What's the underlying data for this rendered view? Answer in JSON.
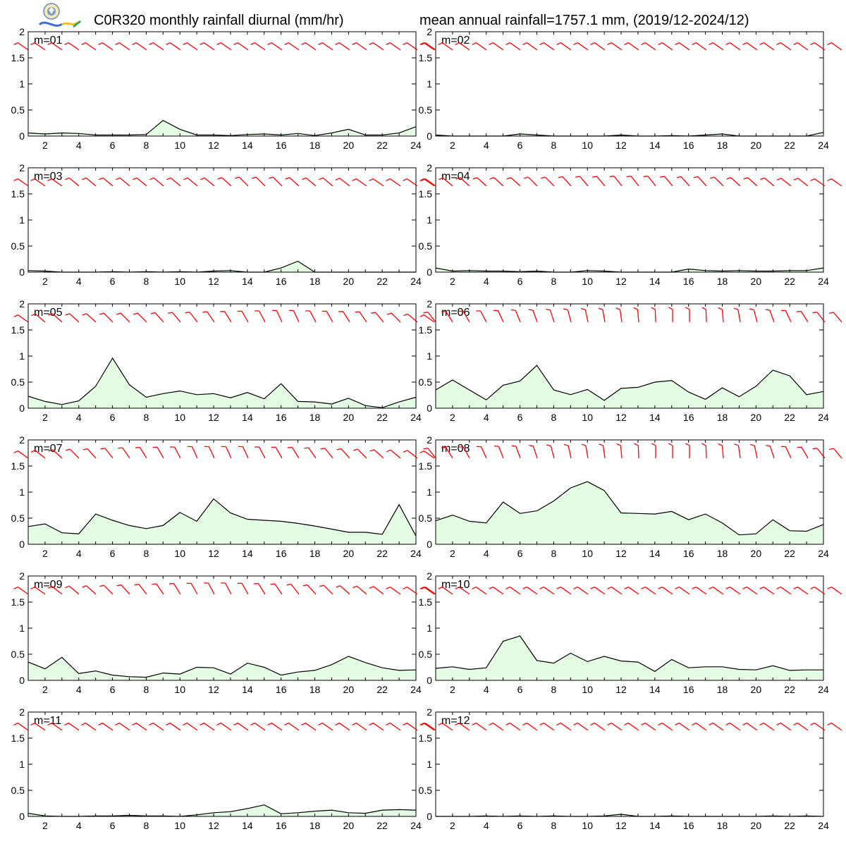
{
  "header": {
    "title_left": "C0R320 monthly rainfall diurnal (mm/hr)",
    "title_right": "mean annual rainfall=1757.1 mm, (2019/12-2024/12)"
  },
  "colors": {
    "fill": "#e4fbe4",
    "line": "#000000",
    "barb": "#ff0000",
    "axes": "#000000"
  },
  "chart_data": [
    {
      "type": "area",
      "title": "m=01",
      "x": [
        1,
        2,
        3,
        4,
        5,
        6,
        7,
        8,
        9,
        10,
        11,
        12,
        13,
        14,
        15,
        16,
        17,
        18,
        19,
        20,
        21,
        22,
        23,
        24
      ],
      "values": [
        0.06,
        0.04,
        0.06,
        0.05,
        0.02,
        0.02,
        0.02,
        0.03,
        0.3,
        0.13,
        0.02,
        0.02,
        0.01,
        0.03,
        0.04,
        0.02,
        0.05,
        0.01,
        0.06,
        0.13,
        0.02,
        0.02,
        0.06,
        0.18
      ],
      "ylim": [
        0,
        2
      ],
      "xlim": [
        1,
        24
      ],
      "xticks": [
        2,
        4,
        6,
        8,
        10,
        12,
        14,
        16,
        18,
        20,
        22,
        24
      ],
      "yticks": [
        0,
        0.5,
        1,
        1.5,
        2
      ],
      "wind_dir": [
        235,
        235,
        235,
        235,
        235,
        235,
        235,
        235,
        235,
        235,
        235,
        235,
        235,
        235,
        235,
        235,
        235,
        235,
        235,
        235,
        235,
        235,
        235,
        235,
        235
      ]
    },
    {
      "type": "area",
      "title": "m=02",
      "x": [
        1,
        2,
        3,
        4,
        5,
        6,
        7,
        8,
        9,
        10,
        11,
        12,
        13,
        14,
        15,
        16,
        17,
        18,
        19,
        20,
        21,
        22,
        23,
        24
      ],
      "values": [
        0.02,
        0.0,
        0.0,
        0.0,
        0.0,
        0.04,
        0.02,
        0.0,
        0.0,
        0.0,
        0.0,
        0.02,
        0.0,
        0.0,
        0.01,
        0.0,
        0.02,
        0.04,
        0.0,
        0.0,
        0.0,
        0.0,
        0.0,
        0.07
      ],
      "ylim": [
        0,
        2
      ],
      "xlim": [
        1,
        24
      ],
      "xticks": [
        2,
        4,
        6,
        8,
        10,
        12,
        14,
        16,
        18,
        20,
        22,
        24
      ],
      "yticks": [
        0,
        0.5,
        1,
        1.5,
        2
      ],
      "wind_dir": [
        235,
        235,
        235,
        235,
        235,
        235,
        235,
        235,
        235,
        235,
        235,
        235,
        235,
        235,
        235,
        235,
        235,
        235,
        235,
        235,
        235,
        235,
        235,
        235,
        235
      ]
    },
    {
      "type": "area",
      "title": "m=03",
      "x": [
        1,
        2,
        3,
        4,
        5,
        6,
        7,
        8,
        9,
        10,
        11,
        12,
        13,
        14,
        15,
        16,
        17,
        18,
        19,
        20,
        21,
        22,
        23,
        24
      ],
      "values": [
        0.03,
        0.02,
        0.0,
        0.0,
        0.0,
        0.01,
        0.0,
        0.01,
        0.0,
        0.01,
        0.0,
        0.02,
        0.03,
        0.0,
        0.0,
        0.08,
        0.21,
        0.0,
        0.0,
        0.0,
        0.0,
        0.0,
        0.0,
        0.0
      ],
      "ylim": [
        0,
        2
      ],
      "xlim": [
        1,
        24
      ],
      "xticks": [
        2,
        4,
        6,
        8,
        10,
        12,
        14,
        16,
        18,
        20,
        22,
        24
      ],
      "yticks": [
        0,
        0.5,
        1,
        1.5,
        2
      ],
      "wind_dir": [
        235,
        235,
        235,
        230,
        230,
        230,
        230,
        230,
        230,
        230,
        230,
        230,
        228,
        225,
        225,
        225,
        228,
        230,
        230,
        232,
        235,
        235,
        235,
        235,
        235
      ]
    },
    {
      "type": "area",
      "title": "m=04",
      "x": [
        1,
        2,
        3,
        4,
        5,
        6,
        7,
        8,
        9,
        10,
        11,
        12,
        13,
        14,
        15,
        16,
        17,
        18,
        19,
        20,
        21,
        22,
        23,
        24
      ],
      "values": [
        0.08,
        0.02,
        0.03,
        0.02,
        0.02,
        0.01,
        0.02,
        0.0,
        0.0,
        0.03,
        0.02,
        0.0,
        0.0,
        0.0,
        0.0,
        0.06,
        0.03,
        0.02,
        0.03,
        0.02,
        0.02,
        0.03,
        0.03,
        0.08
      ],
      "ylim": [
        0,
        2
      ],
      "xlim": [
        1,
        24
      ],
      "xticks": [
        2,
        4,
        6,
        8,
        10,
        12,
        14,
        16,
        18,
        20,
        22,
        24
      ],
      "yticks": [
        0,
        0.5,
        1,
        1.5,
        2
      ],
      "wind_dir": [
        235,
        230,
        228,
        228,
        228,
        228,
        225,
        225,
        222,
        220,
        220,
        218,
        218,
        218,
        220,
        222,
        222,
        225,
        228,
        228,
        230,
        232,
        232,
        235,
        235
      ]
    },
    {
      "type": "area",
      "title": "m=05",
      "x": [
        1,
        2,
        3,
        4,
        5,
        6,
        7,
        8,
        9,
        10,
        11,
        12,
        13,
        14,
        15,
        16,
        17,
        18,
        19,
        20,
        21,
        22,
        23,
        24
      ],
      "values": [
        0.23,
        0.13,
        0.07,
        0.14,
        0.42,
        0.96,
        0.45,
        0.21,
        0.28,
        0.33,
        0.26,
        0.28,
        0.2,
        0.3,
        0.18,
        0.47,
        0.13,
        0.12,
        0.08,
        0.19,
        0.05,
        0.01,
        0.12,
        0.21
      ],
      "ylim": [
        0,
        2
      ],
      "xlim": [
        1,
        24
      ],
      "xticks": [
        2,
        4,
        6,
        8,
        10,
        12,
        14,
        16,
        18,
        20,
        22,
        24
      ],
      "yticks": [
        0,
        0.5,
        1,
        1.5,
        2
      ],
      "wind_dir": [
        235,
        230,
        228,
        228,
        228,
        225,
        225,
        225,
        222,
        220,
        218,
        215,
        212,
        210,
        208,
        205,
        205,
        208,
        210,
        212,
        215,
        220,
        225,
        230,
        235
      ]
    },
    {
      "type": "area",
      "title": "m=06",
      "x": [
        1,
        2,
        3,
        4,
        5,
        6,
        7,
        8,
        9,
        10,
        11,
        12,
        13,
        14,
        15,
        16,
        17,
        18,
        19,
        20,
        21,
        22,
        23,
        24
      ],
      "values": [
        0.35,
        0.54,
        0.35,
        0.16,
        0.44,
        0.52,
        0.82,
        0.35,
        0.26,
        0.36,
        0.15,
        0.38,
        0.4,
        0.5,
        0.53,
        0.31,
        0.17,
        0.39,
        0.22,
        0.42,
        0.73,
        0.62,
        0.26,
        0.32
      ],
      "ylim": [
        0,
        2
      ],
      "xlim": [
        1,
        24
      ],
      "xticks": [
        2,
        4,
        6,
        8,
        10,
        12,
        14,
        16,
        18,
        20,
        22,
        24
      ],
      "yticks": [
        0,
        0.5,
        1,
        1.5,
        2
      ],
      "wind_dir": [
        218,
        212,
        210,
        208,
        205,
        202,
        200,
        198,
        195,
        192,
        190,
        188,
        185,
        182,
        180,
        180,
        182,
        185,
        190,
        195,
        200,
        205,
        212,
        218,
        220
      ]
    },
    {
      "type": "area",
      "title": "m=07",
      "x": [
        1,
        2,
        3,
        4,
        5,
        6,
        7,
        8,
        9,
        10,
        11,
        12,
        13,
        14,
        15,
        16,
        17,
        18,
        19,
        20,
        21,
        22,
        23,
        24
      ],
      "values": [
        0.34,
        0.39,
        0.22,
        0.2,
        0.58,
        0.46,
        0.36,
        0.3,
        0.36,
        0.61,
        0.44,
        0.87,
        0.6,
        0.48,
        0.46,
        0.44,
        0.4,
        0.35,
        0.29,
        0.23,
        0.23,
        0.19,
        0.76,
        0.16
      ],
      "ylim": [
        0,
        2
      ],
      "xlim": [
        1,
        24
      ],
      "xticks": [
        2,
        4,
        6,
        8,
        10,
        12,
        14,
        16,
        18,
        20,
        22,
        24
      ],
      "yticks": [
        0,
        0.5,
        1,
        1.5,
        2
      ],
      "wind_dir": [
        235,
        232,
        228,
        225,
        222,
        218,
        215,
        212,
        210,
        208,
        205,
        205,
        205,
        205,
        208,
        210,
        212,
        215,
        218,
        222,
        225,
        228,
        230,
        232,
        235
      ]
    },
    {
      "type": "area",
      "title": "m=08",
      "x": [
        1,
        2,
        3,
        4,
        5,
        6,
        7,
        8,
        9,
        10,
        11,
        12,
        13,
        14,
        15,
        16,
        17,
        18,
        19,
        20,
        21,
        22,
        23,
        24
      ],
      "values": [
        0.45,
        0.56,
        0.44,
        0.41,
        0.81,
        0.59,
        0.64,
        0.83,
        1.08,
        1.2,
        1.03,
        0.6,
        0.59,
        0.58,
        0.63,
        0.47,
        0.58,
        0.41,
        0.18,
        0.2,
        0.47,
        0.26,
        0.25,
        0.38
      ],
      "ylim": [
        0,
        2
      ],
      "xlim": [
        1,
        24
      ],
      "xticks": [
        2,
        4,
        6,
        8,
        10,
        12,
        14,
        16,
        18,
        20,
        22,
        24
      ],
      "yticks": [
        0,
        0.5,
        1,
        1.5,
        2
      ],
      "wind_dir": [
        218,
        212,
        208,
        205,
        202,
        200,
        198,
        195,
        192,
        190,
        188,
        185,
        182,
        180,
        180,
        180,
        182,
        185,
        188,
        192,
        198,
        205,
        210,
        218,
        220
      ]
    },
    {
      "type": "area",
      "title": "m=09",
      "x": [
        1,
        2,
        3,
        4,
        5,
        6,
        7,
        8,
        9,
        10,
        11,
        12,
        13,
        14,
        15,
        16,
        17,
        18,
        19,
        20,
        21,
        22,
        23,
        24
      ],
      "values": [
        0.35,
        0.22,
        0.44,
        0.13,
        0.18,
        0.1,
        0.07,
        0.06,
        0.14,
        0.12,
        0.25,
        0.24,
        0.12,
        0.33,
        0.25,
        0.1,
        0.16,
        0.19,
        0.3,
        0.46,
        0.34,
        0.24,
        0.19,
        0.2
      ],
      "ylim": [
        0,
        2
      ],
      "xlim": [
        1,
        24
      ],
      "xticks": [
        2,
        4,
        6,
        8,
        10,
        12,
        14,
        16,
        18,
        20,
        22,
        24
      ],
      "yticks": [
        0,
        0.5,
        1,
        1.5,
        2
      ],
      "wind_dir": [
        235,
        235,
        232,
        230,
        228,
        225,
        222,
        218,
        215,
        212,
        210,
        208,
        208,
        210,
        212,
        215,
        218,
        222,
        225,
        228,
        230,
        232,
        235,
        235,
        235
      ]
    },
    {
      "type": "area",
      "title": "m=10",
      "x": [
        1,
        2,
        3,
        4,
        5,
        6,
        7,
        8,
        9,
        10,
        11,
        12,
        13,
        14,
        15,
        16,
        17,
        18,
        19,
        20,
        21,
        22,
        23,
        24
      ],
      "values": [
        0.23,
        0.26,
        0.21,
        0.24,
        0.75,
        0.85,
        0.38,
        0.33,
        0.52,
        0.36,
        0.46,
        0.37,
        0.35,
        0.17,
        0.4,
        0.24,
        0.26,
        0.26,
        0.21,
        0.2,
        0.28,
        0.19,
        0.2,
        0.2
      ],
      "ylim": [
        0,
        2
      ],
      "xlim": [
        1,
        24
      ],
      "xticks": [
        2,
        4,
        6,
        8,
        10,
        12,
        14,
        16,
        18,
        20,
        22,
        24
      ],
      "yticks": [
        0,
        0.5,
        1,
        1.5,
        2
      ],
      "wind_dir": [
        235,
        235,
        235,
        235,
        235,
        235,
        235,
        235,
        235,
        235,
        235,
        235,
        235,
        235,
        235,
        235,
        235,
        235,
        235,
        235,
        235,
        235,
        235,
        235,
        235
      ]
    },
    {
      "type": "area",
      "title": "m=11",
      "x": [
        1,
        2,
        3,
        4,
        5,
        6,
        7,
        8,
        9,
        10,
        11,
        12,
        13,
        14,
        15,
        16,
        17,
        18,
        19,
        20,
        21,
        22,
        23,
        24
      ],
      "values": [
        0.06,
        0.01,
        0.0,
        0.0,
        0.01,
        0.01,
        0.02,
        0.01,
        0.01,
        0.0,
        0.03,
        0.07,
        0.09,
        0.15,
        0.22,
        0.05,
        0.07,
        0.1,
        0.12,
        0.07,
        0.06,
        0.12,
        0.13,
        0.12
      ],
      "ylim": [
        0,
        2
      ],
      "xlim": [
        1,
        24
      ],
      "xticks": [
        2,
        4,
        6,
        8,
        10,
        12,
        14,
        16,
        18,
        20,
        22,
        24
      ],
      "yticks": [
        0,
        0.5,
        1,
        1.5,
        2
      ],
      "wind_dir": [
        235,
        235,
        235,
        235,
        235,
        235,
        235,
        235,
        235,
        235,
        235,
        235,
        235,
        235,
        235,
        235,
        235,
        235,
        235,
        235,
        235,
        235,
        235,
        235,
        235
      ]
    },
    {
      "type": "area",
      "title": "m=12",
      "x": [
        1,
        2,
        3,
        4,
        5,
        6,
        7,
        8,
        9,
        10,
        11,
        12,
        13,
        14,
        15,
        16,
        17,
        18,
        19,
        20,
        21,
        22,
        23,
        24
      ],
      "values": [
        0.0,
        0.0,
        0.0,
        0.01,
        0.0,
        0.01,
        0.0,
        0.01,
        0.0,
        0.0,
        0.01,
        0.04,
        0.0,
        0.0,
        0.01,
        0.0,
        0.0,
        0.0,
        0.0,
        0.0,
        0.01,
        0.0,
        0.01,
        0.0
      ],
      "ylim": [
        0,
        2
      ],
      "xlim": [
        1,
        24
      ],
      "xticks": [
        2,
        4,
        6,
        8,
        10,
        12,
        14,
        16,
        18,
        20,
        22,
        24
      ],
      "yticks": [
        0,
        0.5,
        1,
        1.5,
        2
      ],
      "wind_dir": [
        235,
        235,
        235,
        235,
        235,
        235,
        235,
        235,
        235,
        235,
        235,
        235,
        235,
        235,
        235,
        235,
        235,
        235,
        235,
        235,
        235,
        235,
        235,
        235,
        235
      ]
    }
  ]
}
